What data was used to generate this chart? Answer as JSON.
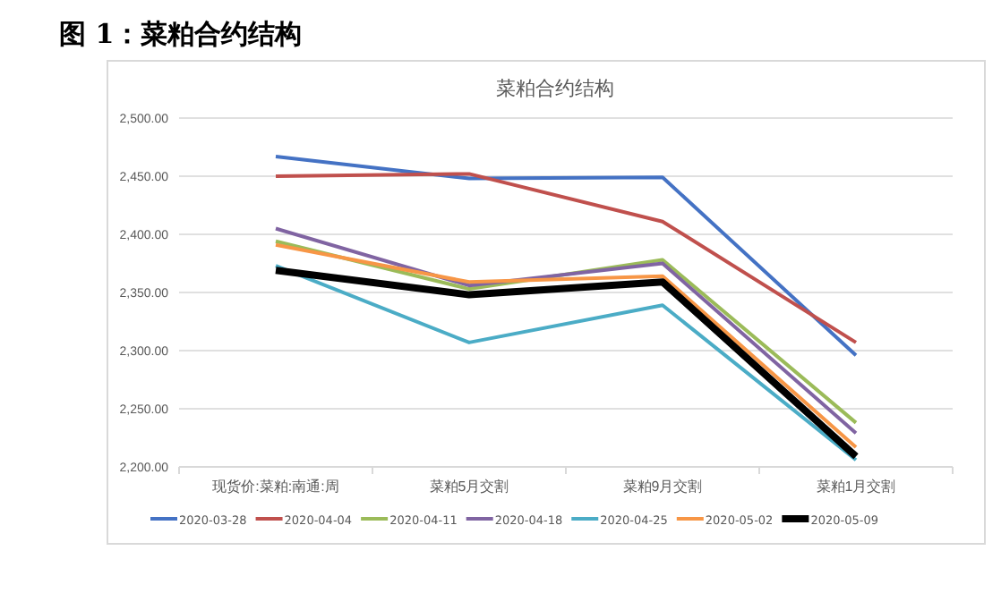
{
  "chart_data": {
    "type": "line",
    "title": "图 1：菜粕合约结构",
    "subtitle": "菜粕合约结构",
    "categories": [
      "现货价:菜粕:南通:周",
      "菜粕5月交割",
      "菜粕9月交割",
      "菜粕1月交割"
    ],
    "series": [
      {
        "name": "2020-03-28",
        "color": "#4472c4",
        "values": [
          2467,
          2448,
          2449,
          2296
        ]
      },
      {
        "name": "2020-04-04",
        "color": "#c0504d",
        "values": [
          2450,
          2452,
          2411,
          2307
        ]
      },
      {
        "name": "2020-04-11",
        "color": "#9bbb59",
        "values": [
          2394,
          2353,
          2378,
          2238
        ]
      },
      {
        "name": "2020-04-18",
        "color": "#8064a2",
        "values": [
          2405,
          2356,
          2375,
          2229
        ]
      },
      {
        "name": "2020-04-25",
        "color": "#4bacc6",
        "values": [
          2373,
          2307,
          2339,
          2206
        ]
      },
      {
        "name": "2020-05-02",
        "color": "#f79646",
        "values": [
          2391,
          2359,
          2364,
          2217
        ]
      },
      {
        "name": "2020-05-09",
        "color": "#000000",
        "values": [
          2369,
          2348,
          2359,
          2209
        ]
      }
    ],
    "ylim": [
      2200,
      2500
    ],
    "yticks": [
      {
        "value": 2200,
        "label": "2,200.00"
      },
      {
        "value": 2250,
        "label": "2,250.00"
      },
      {
        "value": 2300,
        "label": "2,300.00"
      },
      {
        "value": 2350,
        "label": "2,350.00"
      },
      {
        "value": 2400,
        "label": "2,400.00"
      },
      {
        "value": 2450,
        "label": "2,450.00"
      },
      {
        "value": 2500,
        "label": "2,500.00"
      }
    ],
    "grid": "y",
    "legend": "bottom",
    "marker": "none",
    "line_style": "solid"
  }
}
